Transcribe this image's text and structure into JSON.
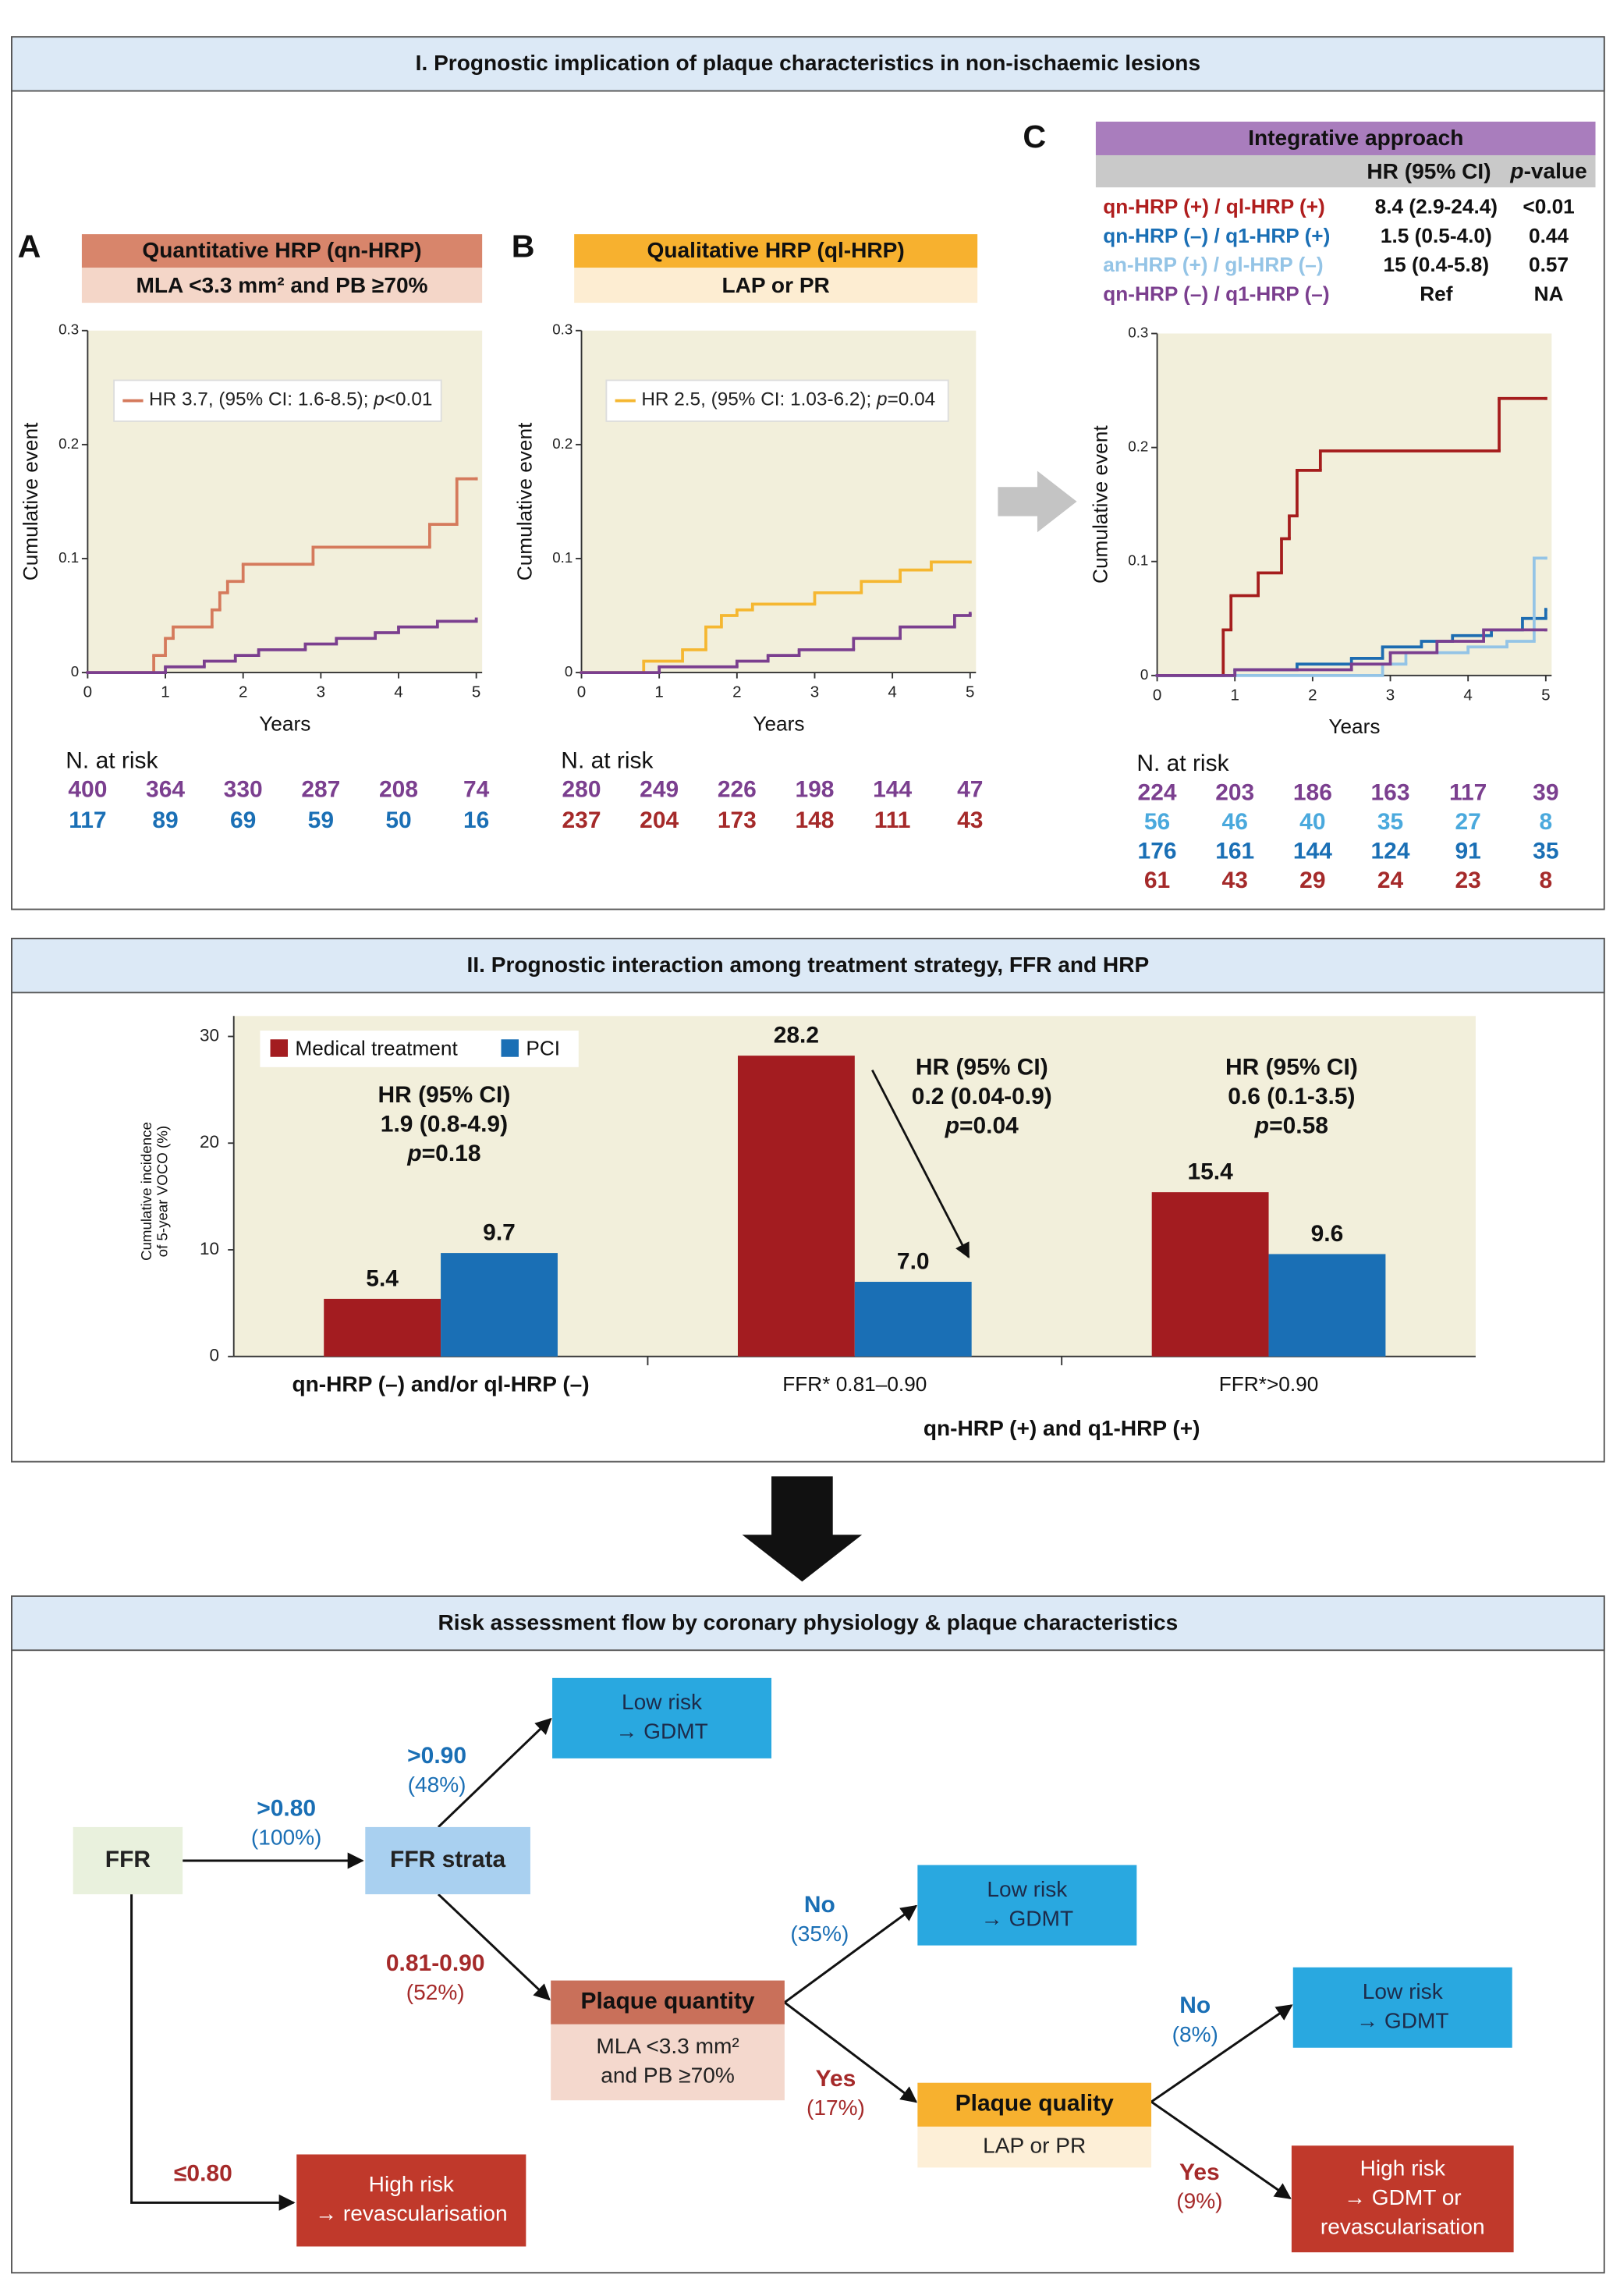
{
  "sections": [
    {
      "title": "I. Prognostic implication of plaque characteristics in non-ischaemic lesions"
    },
    {
      "title": "II. Prognostic interaction among treatment strategy, FFR and HRP"
    },
    {
      "title": "Risk assessment flow by coronary physiology & plaque characteristics"
    }
  ],
  "chart_data": [
    {
      "type": "step",
      "panel": "A",
      "header": "Quantitative HRP (qn-HRP)",
      "subheader": "MLA <3.3 mm² and PB ≥70%",
      "ylabel": "Cumulative event",
      "xlabel": "Years",
      "xlim": [
        0,
        5
      ],
      "ylim": [
        0,
        0.3
      ],
      "xticks": [
        0,
        1,
        2,
        3,
        4,
        5
      ],
      "yticks": [
        0,
        0.1,
        0.2,
        0.3
      ],
      "legend_text": [
        "HR 3.7, (95% CI: 1.6-8.5); ",
        "p",
        "<0.01"
      ],
      "series": [
        {
          "color": "#d57a5c",
          "x": [
            0,
            0.85,
            1.0,
            1.1,
            1.6,
            1.7,
            1.8,
            2.0,
            2.9,
            4.4,
            4.75,
            5
          ],
          "values": [
            0,
            0.015,
            0.03,
            0.04,
            0.055,
            0.07,
            0.08,
            0.095,
            0.11,
            0.13,
            0.17,
            0.17
          ]
        },
        {
          "color": "#7b3f8f",
          "x": [
            0,
            1.0,
            1.5,
            1.9,
            2.2,
            2.8,
            3.2,
            3.7,
            4.0,
            4.5,
            5
          ],
          "values": [
            0,
            0.005,
            0.01,
            0.015,
            0.02,
            0.025,
            0.03,
            0.035,
            0.04,
            0.045,
            0.047
          ]
        }
      ],
      "risk_table": {
        "title": "N. at risk",
        "rows": [
          {
            "color": "#7b3f8f",
            "values": [
              400,
              364,
              330,
              287,
              208,
              74
            ]
          },
          {
            "color": "#1a6fb5",
            "values": [
              117,
              89,
              69,
              59,
              50,
              16
            ]
          }
        ]
      }
    },
    {
      "type": "step",
      "panel": "B",
      "header": "Qualitative HRP (ql-HRP)",
      "subheader": "LAP or PR",
      "ylabel": "Cumulative event",
      "xlabel": "Years",
      "xlim": [
        0,
        5
      ],
      "ylim": [
        0,
        0.3
      ],
      "xticks": [
        0,
        1,
        2,
        3,
        4,
        5
      ],
      "yticks": [
        0,
        0.1,
        0.2,
        0.3
      ],
      "legend_text": [
        "HR 2.5, (95% CI: 1.03-6.2); ",
        "p",
        "=0.04"
      ],
      "series": [
        {
          "color": "#f5b731",
          "x": [
            0,
            0.8,
            1.3,
            1.6,
            1.8,
            2.0,
            2.2,
            3.0,
            3.6,
            4.1,
            4.5,
            5
          ],
          "values": [
            0,
            0.01,
            0.02,
            0.04,
            0.05,
            0.055,
            0.06,
            0.07,
            0.08,
            0.09,
            0.097,
            0.097
          ]
        },
        {
          "color": "#7b3f8f",
          "x": [
            0,
            1.0,
            2.0,
            2.4,
            2.8,
            3.5,
            4.1,
            4.8,
            5
          ],
          "values": [
            0,
            0.005,
            0.01,
            0.015,
            0.02,
            0.03,
            0.04,
            0.05,
            0.052
          ]
        }
      ],
      "risk_table": {
        "title": "N. at risk",
        "rows": [
          {
            "color": "#7b3f8f",
            "values": [
              280,
              249,
              226,
              198,
              144,
              47
            ]
          },
          {
            "color": "#a52a2a",
            "values": [
              237,
              204,
              173,
              148,
              111,
              43
            ]
          }
        ]
      }
    },
    {
      "type": "step",
      "panel": "C",
      "header": "Integrative approach",
      "table": {
        "hr_header": "HR (95% CI)",
        "p_header": [
          "p",
          "-value"
        ],
        "rows": [
          {
            "color": "#b01e1e",
            "label": "qn-HRP (+) / ql-HRP (+)",
            "hr": "8.4 (2.9-24.4)",
            "p": "<0.01"
          },
          {
            "color": "#1a6fb5",
            "label": "qn-HRP (–) / q1-HRP (+)",
            "hr": "1.5 (0.5-4.0)",
            "p": "0.44"
          },
          {
            "color": "#94c4e6",
            "label": "an-HRP (+) / gl-HRP (–)",
            "hr": "15 (0.4-5.8)",
            "p": "0.57"
          },
          {
            "color": "#7b3f8f",
            "label": "qn-HRP (–) / q1-HRP (–)",
            "hr": "Ref",
            "p": "NA"
          }
        ]
      },
      "ylabel": "Cumulative event",
      "xlabel": "Years",
      "xlim": [
        0,
        5
      ],
      "ylim": [
        0,
        0.3
      ],
      "xticks": [
        0,
        1,
        2,
        3,
        4,
        5
      ],
      "yticks": [
        0,
        0.1,
        0.2,
        0.3
      ],
      "series": [
        {
          "color": "#a51d1d",
          "x": [
            0,
            0.85,
            0.95,
            1.3,
            1.6,
            1.7,
            1.8,
            2.1,
            4.4,
            5
          ],
          "values": [
            0,
            0.04,
            0.07,
            0.09,
            0.12,
            0.14,
            0.18,
            0.197,
            0.243,
            0.243
          ]
        },
        {
          "color": "#1d6cb1",
          "x": [
            0,
            1.0,
            1.8,
            2.5,
            2.9,
            3.4,
            3.8,
            4.3,
            4.7,
            5
          ],
          "values": [
            0,
            0.005,
            0.01,
            0.015,
            0.025,
            0.03,
            0.035,
            0.04,
            0.05,
            0.058
          ]
        },
        {
          "color": "#94c4e6",
          "x": [
            0,
            2.9,
            3.2,
            4.0,
            4.5,
            4.85,
            5
          ],
          "values": [
            0,
            0.01,
            0.02,
            0.025,
            0.03,
            0.103,
            0.103
          ]
        },
        {
          "color": "#7b3f8f",
          "x": [
            0,
            1.0,
            2.5,
            3.0,
            3.6,
            4.2,
            5
          ],
          "values": [
            0,
            0.005,
            0.01,
            0.02,
            0.03,
            0.04,
            0.04
          ]
        }
      ],
      "risk_table": {
        "title": "N. at risk",
        "rows": [
          {
            "color": "#7b3f8f",
            "values": [
              224,
              203,
              186,
              163,
              117,
              39
            ]
          },
          {
            "color": "#4aa9dd",
            "values": [
              56,
              46,
              40,
              35,
              27,
              8
            ]
          },
          {
            "color": "#1a6fb5",
            "values": [
              176,
              161,
              144,
              124,
              91,
              35
            ]
          },
          {
            "color": "#a52a2a",
            "values": [
              61,
              43,
              29,
              24,
              23,
              8
            ]
          }
        ]
      }
    },
    {
      "type": "bar",
      "ylabel": [
        "Cumulative incidence",
        "of 5-year VOCO (%)"
      ],
      "categories": [
        "qn-HRP (–) and/or ql-HRP (–)",
        "FFR* 0.81–0.90",
        "FFR*>0.90"
      ],
      "group_label": "qn-HRP (+) and q1-HRP (+)",
      "ylim": [
        0,
        30
      ],
      "yticks": [
        0,
        10,
        20,
        30
      ],
      "legend": "upper left",
      "series": [
        {
          "name": "Medical treatment",
          "color": "#a31c20",
          "values": [
            5.4,
            28.2,
            15.4
          ]
        },
        {
          "name": "PCI",
          "color": "#1a6fb5",
          "values": [
            9.7,
            7.0,
            9.6
          ],
          "value_labels": [
            "9.7",
            "7.0",
            "9.6"
          ]
        }
      ],
      "annotations": [
        {
          "lines": [
            "HR (95% CI)",
            "1.9 (0.8-4.9)"
          ],
          "p": [
            "p",
            "=0.18"
          ]
        },
        {
          "lines": [
            "HR (95% CI)",
            "0.2 (0.04-0.9)"
          ],
          "p": [
            "p",
            "=0.04"
          ]
        },
        {
          "lines": [
            "HR (95% CI)",
            "0.6 (0.1-3.5)"
          ],
          "p": [
            "p",
            "=0.58"
          ]
        }
      ]
    }
  ],
  "flow": {
    "nodes": [
      {
        "lines": [
          "FFR"
        ]
      },
      {
        "lines": [
          "FFR strata"
        ]
      },
      {
        "lines": [
          "Low risk",
          "→ GDMT"
        ]
      },
      {
        "header": "Plaque quantity",
        "lines": [
          "MLA <3.3 mm²",
          "and PB ≥70%"
        ]
      },
      {
        "lines": [
          "Low risk",
          "→ GDMT"
        ]
      },
      {
        "header": "Plaque quality",
        "lines": [
          "LAP or PR"
        ]
      },
      {
        "lines": [
          "Low risk",
          "→ GDMT"
        ]
      },
      {
        "lines": [
          "High risk",
          "→ GDMT or",
          "revascularisation"
        ]
      },
      {
        "lines": [
          "High risk",
          "→ revascularisation"
        ]
      }
    ],
    "edge_labels": [
      {
        "label": ">0.80",
        "share": "(100%)",
        "color": "#1a6fb5"
      },
      {
        "label": ">0.90",
        "share": "(48%)",
        "color": "#1a6fb5"
      },
      {
        "label": "0.81-0.90",
        "share": "(52%)",
        "color": "#a52a2a"
      },
      {
        "label": "≤0.80",
        "color": "#a52a2a"
      },
      {
        "label": "No",
        "share": "(35%)",
        "color": "#1a6fb5"
      },
      {
        "label": "Yes",
        "share": "(17%)",
        "color": "#a52a2a"
      },
      {
        "label": "No",
        "share": "(8%)",
        "color": "#1a6fb5"
      },
      {
        "label": "Yes",
        "share": "(9%)",
        "color": "#a52a2a"
      }
    ]
  }
}
